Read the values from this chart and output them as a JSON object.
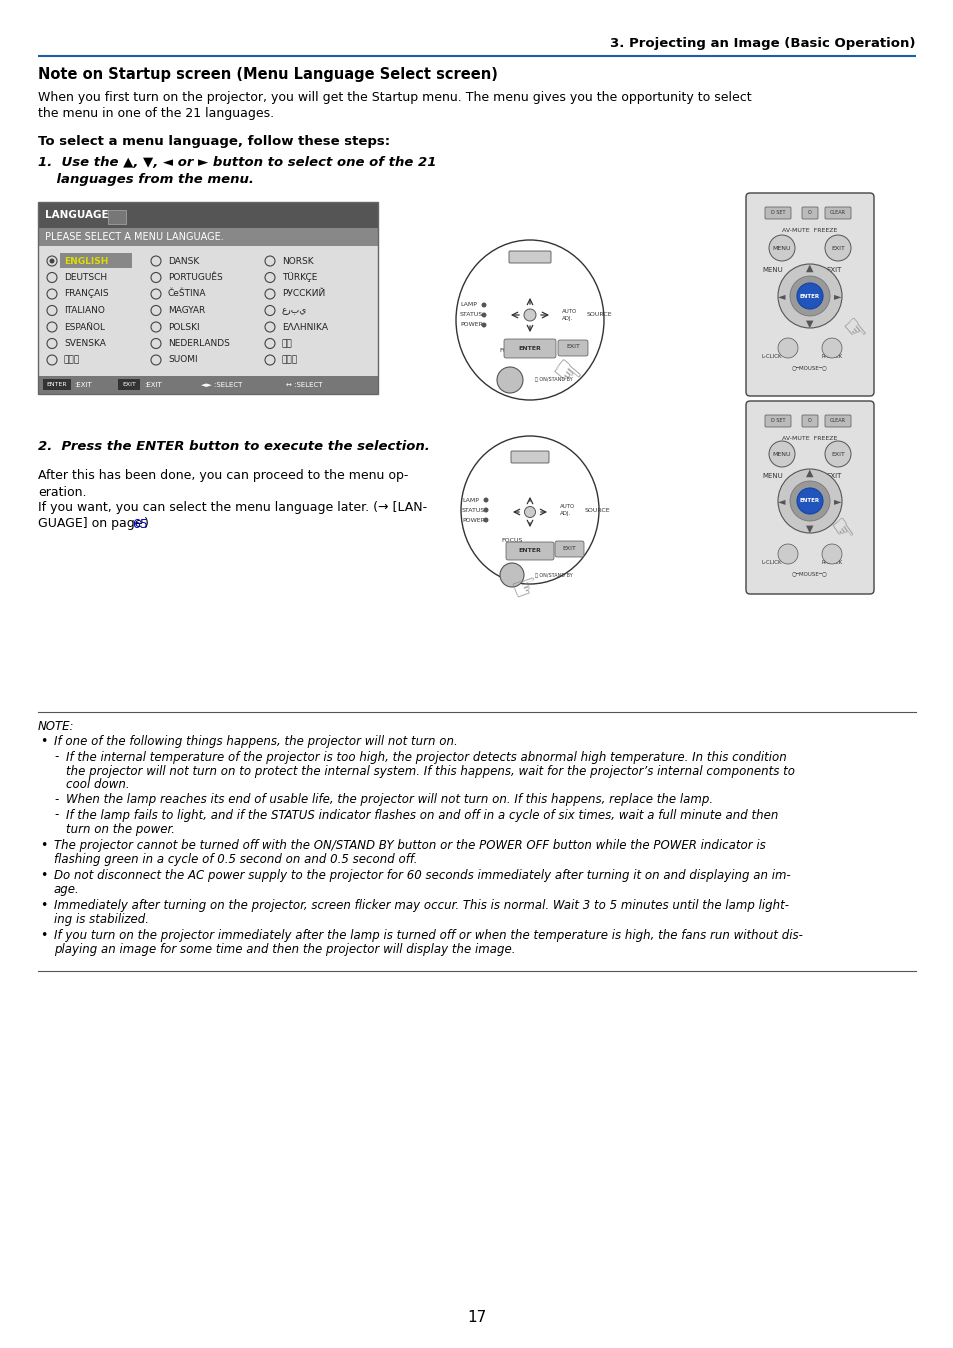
{
  "title_right": "3. Projecting an Image (Basic Operation)",
  "section_heading": "Note on Startup screen (Menu Language Select screen)",
  "intro_text_1": "When you first turn on the projector, you will get the Startup menu. The menu gives you the opportunity to select",
  "intro_text_2": "the menu in one of the 21 languages.",
  "steps_heading": "To select a menu language, follow these steps:",
  "step1_line1": "1.  Use the ▲, ▼, ◄ or ► button to select one of the 21",
  "step1_line2": "    languages from the menu.",
  "step2_heading": "2.  Press the ENTER button to execute the selection.",
  "step2_para1_1": "After this has been done, you can proceed to the menu op-",
  "step2_para1_2": "eration.",
  "step2_para2_1": "If you want, you can select the menu language later. (→ [LAN-",
  "step2_para2_2": "GUAGE] on page ",
  "step2_para2_link": "65",
  "step2_para2_3": ")",
  "lang_col1": [
    "ENGLISH",
    "DEUTSCH",
    "FRANÇAIS",
    "ITALIANO",
    "ESPAÑOL",
    "SVENSKA",
    "日本語"
  ],
  "lang_col2": [
    "DANSK",
    "PORTUGUÊS",
    "ČeŠTINA",
    "MAGYAR",
    "POLSKI",
    "NEDERLANDS",
    "SUOMI"
  ],
  "lang_col3": [
    "NORSK",
    "TÜRKÇE",
    "РУССКИЙ",
    "عربي",
    "ΕΛΛΗΝΙΚΑ",
    "中文",
    "한국어"
  ],
  "note_label": "NOTE:",
  "note_b1": "If one of the following things happens, the projector will not turn on.",
  "note_sub1_1": "If the internal temperature of the projector is too high, the projector detects abnormal high temperature. In this condition",
  "note_sub1_2": "the projector will not turn on to protect the internal system. If this happens, wait for the projector’s internal components to",
  "note_sub1_3": "cool down.",
  "note_sub2": "When the lamp reaches its end of usable life, the projector will not turn on. If this happens, replace the lamp.",
  "note_sub3_1": "If the lamp fails to light, and if the STATUS indicator flashes on and off in a cycle of six times, wait a full minute and then",
  "note_sub3_2": "turn on the power.",
  "note_b2_1": "The projector cannot be turned off with the ON/STAND BY button or the POWER OFF button while the POWER indicator is",
  "note_b2_2": "flashing green in a cycle of 0.5 second on and 0.5 second off.",
  "note_b3_1": "Do not disconnect the AC power supply to the projector for 60 seconds immediately after turning it on and displaying an im-",
  "note_b3_2": "age.",
  "note_b4_1": "Immediately after turning on the projector, screen flicker may occur. This is normal. Wait 3 to 5 minutes until the lamp light-",
  "note_b4_2": "ing is stabilized.",
  "note_b5_1": "If you turn on the projector immediately after the lamp is turned off or when the temperature is high, the fans run without dis-",
  "note_b5_2": "playing an image for some time and then the projector will display the image.",
  "page_number": "17",
  "header_line_color": "#1a5fa8",
  "bg_color": "#ffffff",
  "text_color": "#000000",
  "link_color": "#0000cc"
}
